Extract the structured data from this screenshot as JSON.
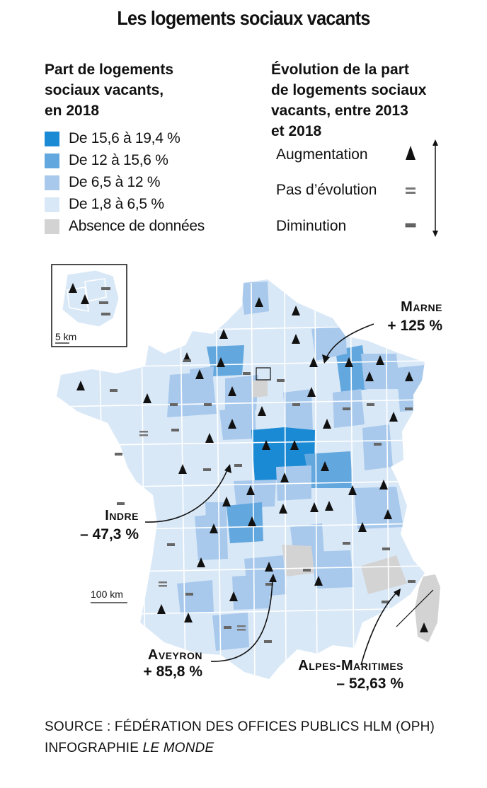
{
  "title": "Les logements sociaux vacants",
  "share_legend": {
    "title_lines": [
      "Part de logements",
      "sociaux vacants,",
      "en 2018"
    ],
    "classes": [
      {
        "label": "De 15,6  à 19,4 %",
        "color": "#1a8ad4"
      },
      {
        "label": "De 12 à 15,6 %",
        "color": "#62a7de"
      },
      {
        "label": "De 6,5 à 12 %",
        "color": "#a8c9ec"
      },
      {
        "label": "De 1,8 à 6,5 %",
        "color": "#d9e8f7"
      },
      {
        "label": "Absence de données",
        "color": "#d3d3d3"
      }
    ]
  },
  "evolution_legend": {
    "title_lines": [
      "Évolution de la part",
      "de logements sociaux",
      "vacants, entre 2013",
      "et 2018"
    ],
    "items": [
      {
        "label": "Augmentation",
        "icon": "triangle-up"
      },
      {
        "label": "Pas d’évolution",
        "icon": "equals"
      },
      {
        "label": "Diminution",
        "icon": "minus"
      }
    ]
  },
  "map": {
    "inset_scale": "5 km",
    "main_scale": "100 km",
    "border_color": "#ffffff"
  },
  "callouts": [
    {
      "name": "Marne",
      "value": "+ 125 %"
    },
    {
      "name": "Indre",
      "value": "– 47,3 %"
    },
    {
      "name": "Aveyron",
      "value": "+ 85,8 %"
    },
    {
      "name": "Alpes-Maritimes",
      "value": "– 52,63 %"
    }
  ],
  "source": {
    "line1": "SOURCE : FÉDÉRATION DES OFFICES PUBLICS HLM (OPH)",
    "line2_prefix": "INFOGRAPHIE ",
    "line2_italic": "LE MONDE"
  }
}
